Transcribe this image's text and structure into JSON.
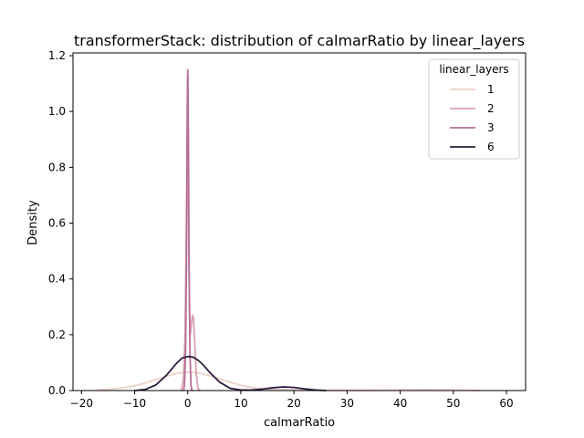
{
  "chart_data": {
    "type": "line",
    "title": "transformerStack: distribution of calmarRatio by linear_layers",
    "xlabel": "calmarRatio",
    "ylabel": "Density",
    "xlim": [
      -21.6,
      63.6
    ],
    "ylim": [
      0,
      1.21
    ],
    "xticks": [
      -20,
      -10,
      0,
      10,
      20,
      30,
      40,
      50,
      60
    ],
    "xtick_labels": [
      "−20",
      "−10",
      "0",
      "10",
      "20",
      "30",
      "40",
      "50",
      "60"
    ],
    "yticks": [
      0.0,
      0.2,
      0.4,
      0.6,
      0.8,
      1.0,
      1.2
    ],
    "ytick_labels": [
      "0.0",
      "0.2",
      "0.4",
      "0.6",
      "0.8",
      "1.0",
      "1.2"
    ],
    "grid": false,
    "legend": {
      "title": "linear_layers",
      "placement": "top-right"
    },
    "series": [
      {
        "name": "1",
        "color": "#efd0c9",
        "x": [
          -17,
          -15,
          -12,
          -10,
          -8,
          -6,
          -4,
          -2,
          0,
          2,
          4,
          6,
          8,
          10,
          12,
          15,
          20,
          25,
          30,
          35,
          40,
          45,
          50,
          55
        ],
        "y": [
          0.002,
          0.004,
          0.01,
          0.017,
          0.027,
          0.039,
          0.051,
          0.062,
          0.066,
          0.063,
          0.054,
          0.042,
          0.03,
          0.019,
          0.011,
          0.005,
          0.002,
          0.001,
          0.001,
          0.001,
          0.002,
          0.003,
          0.002,
          0.0
        ]
      },
      {
        "name": "2",
        "color": "#d8a3b0",
        "x": [
          -1.2,
          -0.8,
          -0.5,
          -0.3,
          -0.1,
          0.0,
          0.1,
          0.3,
          0.5,
          0.7,
          0.9,
          1.1,
          1.3,
          1.6,
          1.9,
          2.3
        ],
        "y": [
          0.0,
          0.04,
          0.2,
          0.55,
          0.78,
          0.8,
          0.7,
          0.32,
          0.2,
          0.24,
          0.27,
          0.26,
          0.18,
          0.06,
          0.01,
          0.0
        ]
      },
      {
        "name": "3",
        "color": "#b76f97",
        "x": [
          -0.8,
          -0.6,
          -0.4,
          -0.25,
          -0.15,
          -0.05,
          0.0,
          0.05,
          0.15,
          0.25,
          0.4,
          0.6,
          0.8
        ],
        "y": [
          0.0,
          0.02,
          0.15,
          0.45,
          0.85,
          1.1,
          1.15,
          1.1,
          0.85,
          0.45,
          0.15,
          0.02,
          0.0
        ]
      },
      {
        "name": "6",
        "color": "#2d1e3e",
        "x": [
          -10,
          -8,
          -6,
          -4,
          -2,
          -1,
          0,
          1,
          2,
          3,
          4,
          6,
          8,
          10,
          12,
          14,
          16,
          18,
          20,
          22,
          24,
          26
        ],
        "y": [
          0.0,
          0.004,
          0.02,
          0.055,
          0.1,
          0.117,
          0.122,
          0.12,
          0.108,
          0.09,
          0.068,
          0.03,
          0.008,
          0.002,
          0.002,
          0.005,
          0.01,
          0.013,
          0.011,
          0.006,
          0.002,
          0.0
        ]
      }
    ]
  }
}
